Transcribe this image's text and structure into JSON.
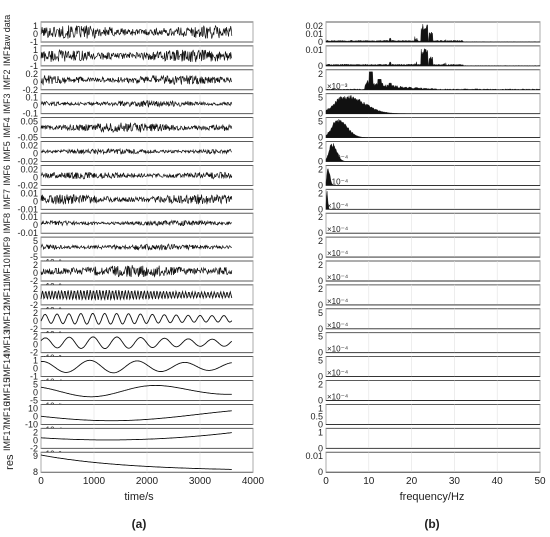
{
  "panel_labels": [
    "(a)",
    "(b)"
  ],
  "chart_data": [
    {
      "type": "line",
      "panel": "(a)",
      "xlabel": "time/s",
      "xlim": [
        0,
        4000
      ],
      "xticks": [
        0,
        1000,
        2000,
        3000,
        4000
      ],
      "grid": true,
      "signal_end": 3600,
      "rows": [
        {
          "label": "raw data",
          "ticks": [
            "1",
            "0",
            "-1"
          ],
          "exponent": "",
          "shape": "noise",
          "amp": 0.75
        },
        {
          "label": "IMF1",
          "ticks": [
            "1",
            "0",
            "-1"
          ],
          "exponent": "",
          "shape": "noise",
          "amp": 0.7
        },
        {
          "label": "IMF2",
          "ticks": [
            "0.2",
            "0",
            "-0.2"
          ],
          "exponent": "",
          "shape": "noise",
          "amp": 0.55
        },
        {
          "label": "IMF3",
          "ticks": [
            "0.1",
            "0",
            "-0.1"
          ],
          "exponent": "",
          "shape": "noise",
          "amp": 0.35
        },
        {
          "label": "IMF4",
          "ticks": [
            "0.05",
            "0",
            "-0.05"
          ],
          "exponent": "",
          "shape": "noise",
          "amp": 0.55
        },
        {
          "label": "IMF5",
          "ticks": [
            "0.02",
            "0",
            "-0.02"
          ],
          "exponent": "",
          "shape": "noise",
          "amp": 0.3
        },
        {
          "label": "IMF6",
          "ticks": [
            "0.02",
            "0",
            "-0.02"
          ],
          "exponent": "",
          "shape": "noise",
          "amp": 0.4
        },
        {
          "label": "IMF7",
          "ticks": [
            "0.01",
            "0",
            "-0.01"
          ],
          "exponent": "",
          "shape": "noise",
          "amp": 0.55
        },
        {
          "label": "IMF8",
          "ticks": [
            "0.01",
            "0",
            "-0.01"
          ],
          "exponent": "",
          "shape": "noise",
          "amp": 0.3
        },
        {
          "label": "IMF9",
          "ticks": [
            "5",
            "0",
            "-5"
          ],
          "exponent": "×10⁻³",
          "shape": "noise",
          "amp": 0.35
        },
        {
          "label": "IMF10",
          "ticks": [
            "2",
            "0",
            "-2"
          ],
          "exponent": "×10⁻³",
          "shape": "noise",
          "amp": 0.7
        },
        {
          "label": "IMF11",
          "ticks": [
            "2",
            "0",
            "-2"
          ],
          "exponent": "×10⁻³",
          "shape": "wave",
          "cycles": 60,
          "amp": 0.55
        },
        {
          "label": "IMF12",
          "ticks": [
            "2",
            "0",
            "-2"
          ],
          "exponent": "×10⁻³",
          "shape": "wave",
          "cycles": 16,
          "amp": 0.6
        },
        {
          "label": "IMF13",
          "ticks": [
            "2",
            "0",
            "-2"
          ],
          "exponent": "×10⁻³",
          "shape": "wave",
          "cycles": 8,
          "amp": 0.65
        },
        {
          "label": "IMF14",
          "ticks": [
            "1",
            "0",
            "-1"
          ],
          "exponent": "×10⁻⁴",
          "shape": "wave",
          "cycles": 4,
          "amp": 0.7
        },
        {
          "label": "IMF15",
          "ticks": [
            "5",
            "0",
            "-5"
          ],
          "exponent": "×10⁻⁵",
          "shape": "wave",
          "cycles": 1.4,
          "amp": 0.7
        },
        {
          "label": "IMF16",
          "ticks": [
            "10",
            "0",
            "-10"
          ],
          "exponent": "×10⁻⁴",
          "shape": "slow",
          "amp": 0.7
        },
        {
          "label": "IMF17",
          "ticks": [
            "2",
            "0",
            "-2"
          ],
          "exponent": "×10⁻³",
          "shape": "bowl",
          "amp": 0.6
        },
        {
          "label": "res",
          "ticks": [
            "9",
            "8"
          ],
          "exponent": "",
          "shape": "decay",
          "amp": 0.8
        }
      ]
    },
    {
      "type": "area",
      "panel": "(b)",
      "xlabel": "frequency/Hz",
      "xlim": [
        0,
        50
      ],
      "xticks": [
        0,
        10,
        20,
        30,
        40,
        50
      ],
      "grid": true,
      "rows": [
        {
          "ticks": [
            "0.02",
            "0.01",
            "0"
          ],
          "exponent": "",
          "spectrum": "spikes",
          "peak": 23
        },
        {
          "ticks": [
            "0.01",
            "0"
          ],
          "exponent": "",
          "spectrum": "spikes",
          "peak": 23
        },
        {
          "ticks": [
            "2",
            "0"
          ],
          "exponent": "×10⁻³",
          "spectrum": "mid",
          "peak": 10.5
        },
        {
          "ticks": [
            "5",
            "0"
          ],
          "exponent": "×10⁻⁴",
          "spectrum": "hump",
          "peak": 5,
          "width": 4
        },
        {
          "ticks": [
            "5",
            "0"
          ],
          "exponent": "×10⁻⁴",
          "spectrum": "hump",
          "peak": 3,
          "width": 2
        },
        {
          "ticks": [
            "2",
            "0"
          ],
          "exponent": "×10⁻⁴",
          "spectrum": "hump",
          "peak": 1.5,
          "width": 1
        },
        {
          "ticks": [
            "2",
            "0"
          ],
          "exponent": "×10⁻⁴",
          "spectrum": "hump",
          "peak": 0.5,
          "width": 0.4
        },
        {
          "ticks": [
            "2",
            "0"
          ],
          "exponent": "×10⁻⁴",
          "spectrum": "hump",
          "peak": 0.2,
          "width": 0.2
        },
        {
          "ticks": [
            "2",
            "0"
          ],
          "exponent": "×10⁻⁴",
          "spectrum": "flat"
        },
        {
          "ticks": [
            "2",
            "0"
          ],
          "exponent": "×10⁻⁴",
          "spectrum": "flat"
        },
        {
          "ticks": [
            "2",
            "0"
          ],
          "exponent": "×10⁻⁴",
          "spectrum": "flat"
        },
        {
          "ticks": [
            "2",
            "0"
          ],
          "exponent": "×10⁻⁴",
          "spectrum": "flat"
        },
        {
          "ticks": [
            "5",
            "0"
          ],
          "exponent": "×10⁻⁴",
          "spectrum": "flat"
        },
        {
          "ticks": [
            "5",
            "0"
          ],
          "exponent": "×10⁻⁴",
          "spectrum": "flat"
        },
        {
          "ticks": [
            "5",
            "0"
          ],
          "exponent": "×10⁻⁴",
          "spectrum": "flat"
        },
        {
          "ticks": [
            "2",
            "0"
          ],
          "exponent": "×10⁻⁴",
          "spectrum": "flat"
        },
        {
          "ticks": [
            "1",
            "0.5",
            "0"
          ],
          "exponent": "",
          "spectrum": "flat"
        },
        {
          "ticks": [
            "1",
            "0"
          ],
          "exponent": "",
          "spectrum": "flat"
        },
        {
          "ticks": [
            "0.01",
            "0"
          ],
          "exponent": "",
          "spectrum": "flat"
        }
      ]
    }
  ]
}
